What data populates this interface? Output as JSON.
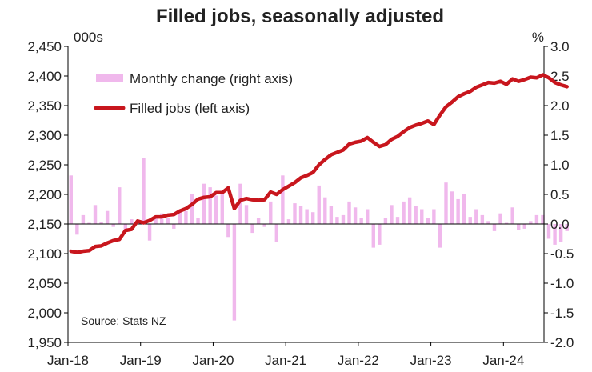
{
  "chart_data": {
    "type": "bar+line",
    "title": "Filled jobs, seasonally adjusted",
    "left_unit": "000s",
    "right_unit": "%",
    "source": "Source: Stats NZ",
    "left_axis": {
      "min": 1950,
      "max": 2450,
      "ticks": [
        "2,450",
        "2,400",
        "2,350",
        "2,300",
        "2,250",
        "2,200",
        "2,150",
        "2,100",
        "2,050",
        "2,000",
        "1,950"
      ]
    },
    "right_axis": {
      "min": -2.0,
      "max": 3.0,
      "ticks": [
        "3.0",
        "2.5",
        "2.0",
        "1.5",
        "1.0",
        "0.5",
        "0.0",
        "-0.5",
        "-1.0",
        "-1.5",
        "-2.0"
      ]
    },
    "x_ticks": [
      "Jan-18",
      "Jan-19",
      "Jan-20",
      "Jan-21",
      "Jan-22",
      "Jan-23",
      "Jan-24"
    ],
    "x_start": "2018-01",
    "legend": [
      {
        "label": "Monthly change (right axis)",
        "color": "#f0b8ec",
        "kind": "bar"
      },
      {
        "label": "Filled jobs (left axis)",
        "color": "#c8161d",
        "kind": "line"
      }
    ],
    "series": [
      {
        "name": "Monthly change (right axis)",
        "axis": "right",
        "color": "#f0b8ec",
        "values": [
          0.82,
          -0.18,
          0.15,
          0.02,
          0.32,
          0.04,
          0.22,
          -0.05,
          0.62,
          -0.1,
          0.08,
          0.03,
          1.12,
          -0.28,
          0.1,
          0.18,
          0.1,
          -0.08,
          0.2,
          0.22,
          0.5,
          0.1,
          0.68,
          0.62,
          0.48,
          0.5,
          -0.22,
          -1.63,
          0.68,
          0.32,
          -0.15,
          0.1,
          -0.05,
          0.38,
          -0.3,
          0.82,
          0.08,
          0.35,
          0.3,
          0.25,
          0.2,
          0.65,
          0.45,
          0.3,
          0.12,
          0.15,
          0.38,
          0.28,
          0.1,
          0.25,
          -0.4,
          -0.35,
          0.1,
          0.32,
          0.12,
          0.38,
          0.45,
          0.3,
          0.25,
          0.1,
          0.25,
          -0.4,
          0.7,
          0.55,
          0.42,
          0.5,
          0.12,
          0.25,
          0.15,
          0.05,
          -0.12,
          0.18,
          0.02,
          0.28,
          -0.1,
          -0.08,
          0.05,
          0.15,
          0.15,
          -0.25,
          -0.35,
          -0.3,
          -0.12
        ]
      },
      {
        "name": "Filled jobs (left axis)",
        "axis": "left",
        "color": "#c8161d",
        "values": [
          2104,
          2102,
          2104,
          2105,
          2112,
          2113,
          2118,
          2122,
          2124,
          2139,
          2141,
          2155,
          2152,
          2156,
          2162,
          2162,
          2165,
          2166,
          2172,
          2176,
          2183,
          2192,
          2195,
          2196,
          2203,
          2203,
          2211,
          2176,
          2190,
          2193,
          2191,
          2190,
          2191,
          2204,
          2200,
          2208,
          2214,
          2220,
          2228,
          2232,
          2237,
          2250,
          2259,
          2267,
          2271,
          2275,
          2285,
          2288,
          2290,
          2296,
          2288,
          2281,
          2284,
          2293,
          2298,
          2306,
          2313,
          2317,
          2320,
          2324,
          2318,
          2334,
          2348,
          2356,
          2365,
          2370,
          2374,
          2381,
          2385,
          2389,
          2388,
          2391,
          2386,
          2395,
          2391,
          2394,
          2398,
          2397,
          2402,
          2397,
          2389,
          2385,
          2382
        ]
      }
    ],
    "grid": false,
    "legend_position": "top-left"
  }
}
